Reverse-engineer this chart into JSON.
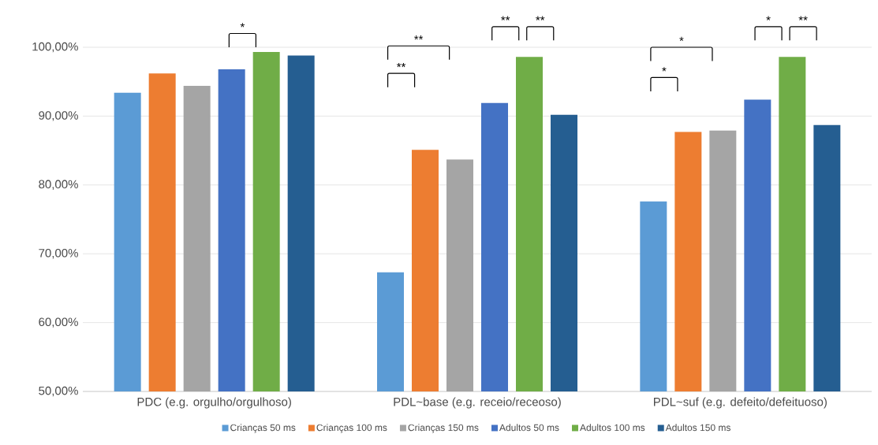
{
  "chart_data": {
    "type": "bar",
    "categories": [
      "PDC (e.g. orgulho/orgulhoso)",
      "PDL~base (e.g. receio/receoso)",
      "PDL~suf (e.g. defeito/defeituoso)"
    ],
    "series": [
      {
        "name": "Crianças 50 ms",
        "color": "#5b9bd5",
        "values": [
          93.4,
          67.3,
          77.6
        ]
      },
      {
        "name": "Crianças 100 ms",
        "color": "#ed7d31",
        "values": [
          96.2,
          85.1,
          87.7
        ]
      },
      {
        "name": "Crianças 150 ms",
        "color": "#a5a5a5",
        "values": [
          94.4,
          83.7,
          87.9
        ]
      },
      {
        "name": "Adultos 50 ms",
        "color": "#4472c4",
        "values": [
          96.8,
          91.9,
          92.4
        ]
      },
      {
        "name": "Adultos 100 ms",
        "color": "#70ad47",
        "values": [
          99.3,
          98.6,
          98.6
        ]
      },
      {
        "name": "Adultos 150 ms",
        "color": "#255e91",
        "values": [
          98.8,
          90.2,
          88.7
        ]
      }
    ],
    "ylim": [
      50,
      100
    ],
    "yticks": [
      {
        "value": 50,
        "label": "50,00%"
      },
      {
        "value": 60,
        "label": "60,00%"
      },
      {
        "value": 70,
        "label": "70,00%"
      },
      {
        "value": 80,
        "label": "80,00%"
      },
      {
        "value": 90,
        "label": "90,00%"
      },
      {
        "value": 100,
        "label": "100,00%"
      }
    ],
    "grid": "y",
    "legend": "bottom",
    "annotations": [
      "*",
      "**",
      "**",
      "**",
      "**",
      "*",
      "*",
      "*",
      "**"
    ]
  }
}
